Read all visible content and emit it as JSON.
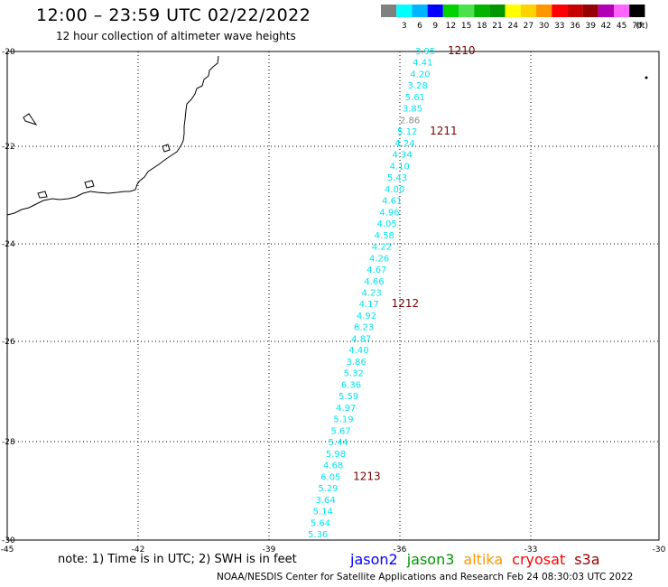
{
  "header": {
    "title": "12:00 – 23:59 UTC 02/22/2022",
    "subtitle": "12 hour collection of altimeter wave heights"
  },
  "colorbar": {
    "unit": "(ft)",
    "bins": [
      {
        "label": "",
        "color": "#808080"
      },
      {
        "label": "3",
        "color": "#00ffff"
      },
      {
        "label": "6",
        "color": "#00b4ff"
      },
      {
        "label": "9",
        "color": "#0000ff"
      },
      {
        "label": "12",
        "color": "#00d200"
      },
      {
        "label": "15",
        "color": "#4be14b"
      },
      {
        "label": "18",
        "color": "#00b400"
      },
      {
        "label": "21",
        "color": "#009600"
      },
      {
        "label": "24",
        "color": "#ffff00"
      },
      {
        "label": "27",
        "color": "#ffd200"
      },
      {
        "label": "30",
        "color": "#ff9600"
      },
      {
        "label": "33",
        "color": "#ff0000"
      },
      {
        "label": "36",
        "color": "#c80000"
      },
      {
        "label": "39",
        "color": "#960000"
      },
      {
        "label": "42",
        "color": "#b400b4"
      },
      {
        "label": "45",
        "color": "#ff64ff"
      },
      {
        "label": "70",
        "color": "#000000"
      }
    ]
  },
  "axes": {
    "lon_ticks": [
      "-45",
      "-42",
      "-39",
      "-36",
      "-33",
      "-30"
    ],
    "lat_ticks": [
      "-20",
      "-22",
      "-24",
      "-26",
      "-28",
      "-30"
    ]
  },
  "track": {
    "color": "#00e5ee",
    "gray_color": "#888888",
    "time_color": "#7a0000",
    "values": [
      "3.95",
      "4.41",
      "4.20",
      "3.28",
      "5.61",
      "3.85",
      "2.86",
      "5.12",
      "4.24",
      "4.34",
      "4.10",
      "5.43",
      "4.00",
      "4.61",
      "4.96",
      "4.05",
      "4.58",
      "4.22",
      "4.26",
      "4.67",
      "4.66",
      "4.23",
      "4.17",
      "4.92",
      "6.23",
      "4.87",
      "4.40",
      "3.86",
      "5.32",
      "6.36",
      "5.59",
      "4.97",
      "5.19",
      "5.67",
      "5.44",
      "5.98",
      "4.68",
      "6.05",
      "5.29",
      "3.64",
      "5.14",
      "5.64",
      "5.36"
    ],
    "time_labels": [
      {
        "text": "1210",
        "index": 0
      },
      {
        "text": "1211",
        "index": 7
      },
      {
        "text": "1212",
        "index": 22
      },
      {
        "text": "1213",
        "index": 37
      }
    ]
  },
  "note": "note: 1) Time is in UTC; 2) SWH is in feet",
  "satellites": [
    {
      "name": "jason2",
      "color": "#0000ff"
    },
    {
      "name": "jason3",
      "color": "#009600"
    },
    {
      "name": "altika",
      "color": "#ff9600"
    },
    {
      "name": "cryosat",
      "color": "#ff0000"
    },
    {
      "name": "s3a",
      "color": "#960000"
    }
  ],
  "footer": "NOAA/NESDIS Center for Satellite Applications and Research    Feb 24 08:30:03 UTC 2022"
}
